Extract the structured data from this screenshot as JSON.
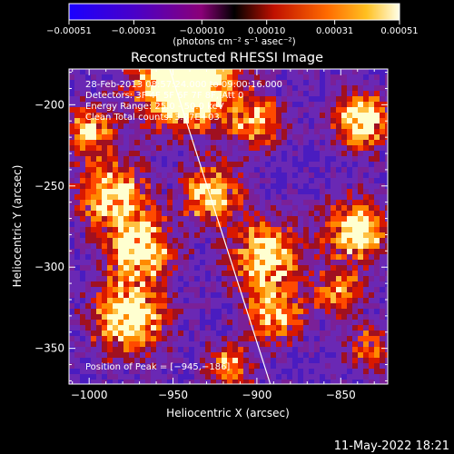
{
  "chart_data": {
    "type": "heatmap",
    "title": "Reconstructed RHESSI Image",
    "xlabel": "Heliocentric X (arcsec)",
    "ylabel": "Heliocentric Y (arcsec)",
    "xlim": [
      -1012,
      -822
    ],
    "ylim": [
      -372,
      -178
    ],
    "xticks": [
      -1000,
      -950,
      -900,
      -850
    ],
    "yticks": [
      -200,
      -250,
      -300,
      -350
    ],
    "xtick_labels": [
      "−1000",
      "−950",
      "−900",
      "−850"
    ],
    "ytick_labels": [
      "−200",
      "−250",
      "−300",
      "−350"
    ],
    "colorbar": {
      "range": [
        -0.00051,
        0.00051
      ],
      "ticks": [
        -0.00051,
        -0.00031,
        -0.0001,
        0.0001,
        0.00031,
        0.00051
      ],
      "tick_labels": [
        "−0.00051",
        "−0.00031",
        "−0.00010",
        "0.00010",
        "0.00031",
        "0.00051"
      ],
      "unit_label": "(photons cm⁻² s⁻¹ asec⁻²)",
      "colors": [
        "#1a00ff",
        "#5a00b0",
        "#b0005a",
        "#ff3000",
        "#ff9000",
        "#ffffe8"
      ]
    },
    "annotations": [
      "28-Feb-2013 08:57:24.000 to 09:00:16.000",
      "Detectors: 3F 4F 5F 6F 7F 8F, Att 0",
      "Energy Range: 25.0 - 50.0 keV",
      "Clean   Total counts: 3.87E+03"
    ],
    "peak_label": "Position of Peak = [−945,−186]",
    "peak": [
      -945,
      -186
    ],
    "limb_line": [
      [
        -952,
        -178
      ],
      [
        -892,
        -372
      ]
    ]
  },
  "footer": {
    "date": "11-May-2022 18:21"
  }
}
